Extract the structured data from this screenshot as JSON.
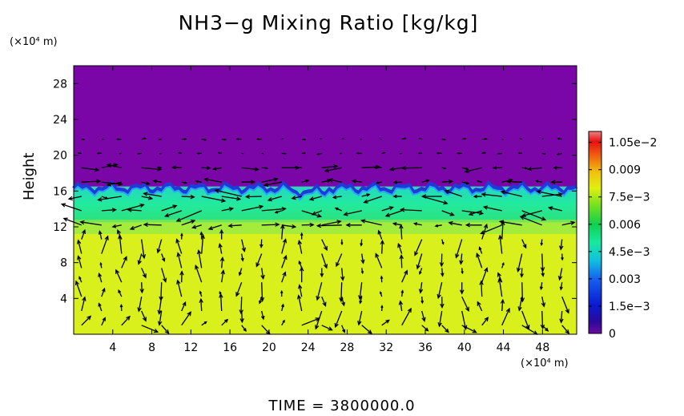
{
  "chart_data": {
    "type": "heatmap",
    "title": "NH3−g Mixing Ratio [kg/kg]",
    "ylabel": "Height",
    "y_unit_label": "(×10⁴ m)",
    "x_unit_label": "(×10⁴ m)",
    "footer": "TIME  =  3800000.0",
    "xlim": [
      0,
      51.5
    ],
    "ylim": [
      0,
      30
    ],
    "x_ticks": [
      "4",
      "8",
      "12",
      "16",
      "20",
      "24",
      "28",
      "32",
      "36",
      "40",
      "44",
      "48"
    ],
    "y_ticks": [
      "4",
      "8",
      "12",
      "16",
      "20",
      "24",
      "28"
    ],
    "colorbar": {
      "range": [
        0,
        0.0111
      ],
      "tick_labels": [
        "1.05e−2",
        "0.009",
        "7.5e−3",
        "0.006",
        "4.5e−3",
        "0.003",
        "1.5e−3",
        "0"
      ],
      "tick_values": [
        0.0105,
        0.009,
        0.0075,
        0.006,
        0.0045,
        0.003,
        0.0015,
        0
      ]
    },
    "layers": [
      {
        "from_height": 16.5,
        "to_height": 30,
        "value": 0.0
      },
      {
        "from_height": 12.5,
        "to_height": 16.5,
        "value": 0.0055
      },
      {
        "from_height": 0,
        "to_height": 12,
        "value": 0.0079
      }
    ],
    "vectors": "velocity field arrows overlaid across the domain"
  },
  "colors": {
    "upper": "#7a06a8",
    "interface": "#1e3bd6",
    "mid": "#21e8b0",
    "lower": "#d9f01c"
  }
}
